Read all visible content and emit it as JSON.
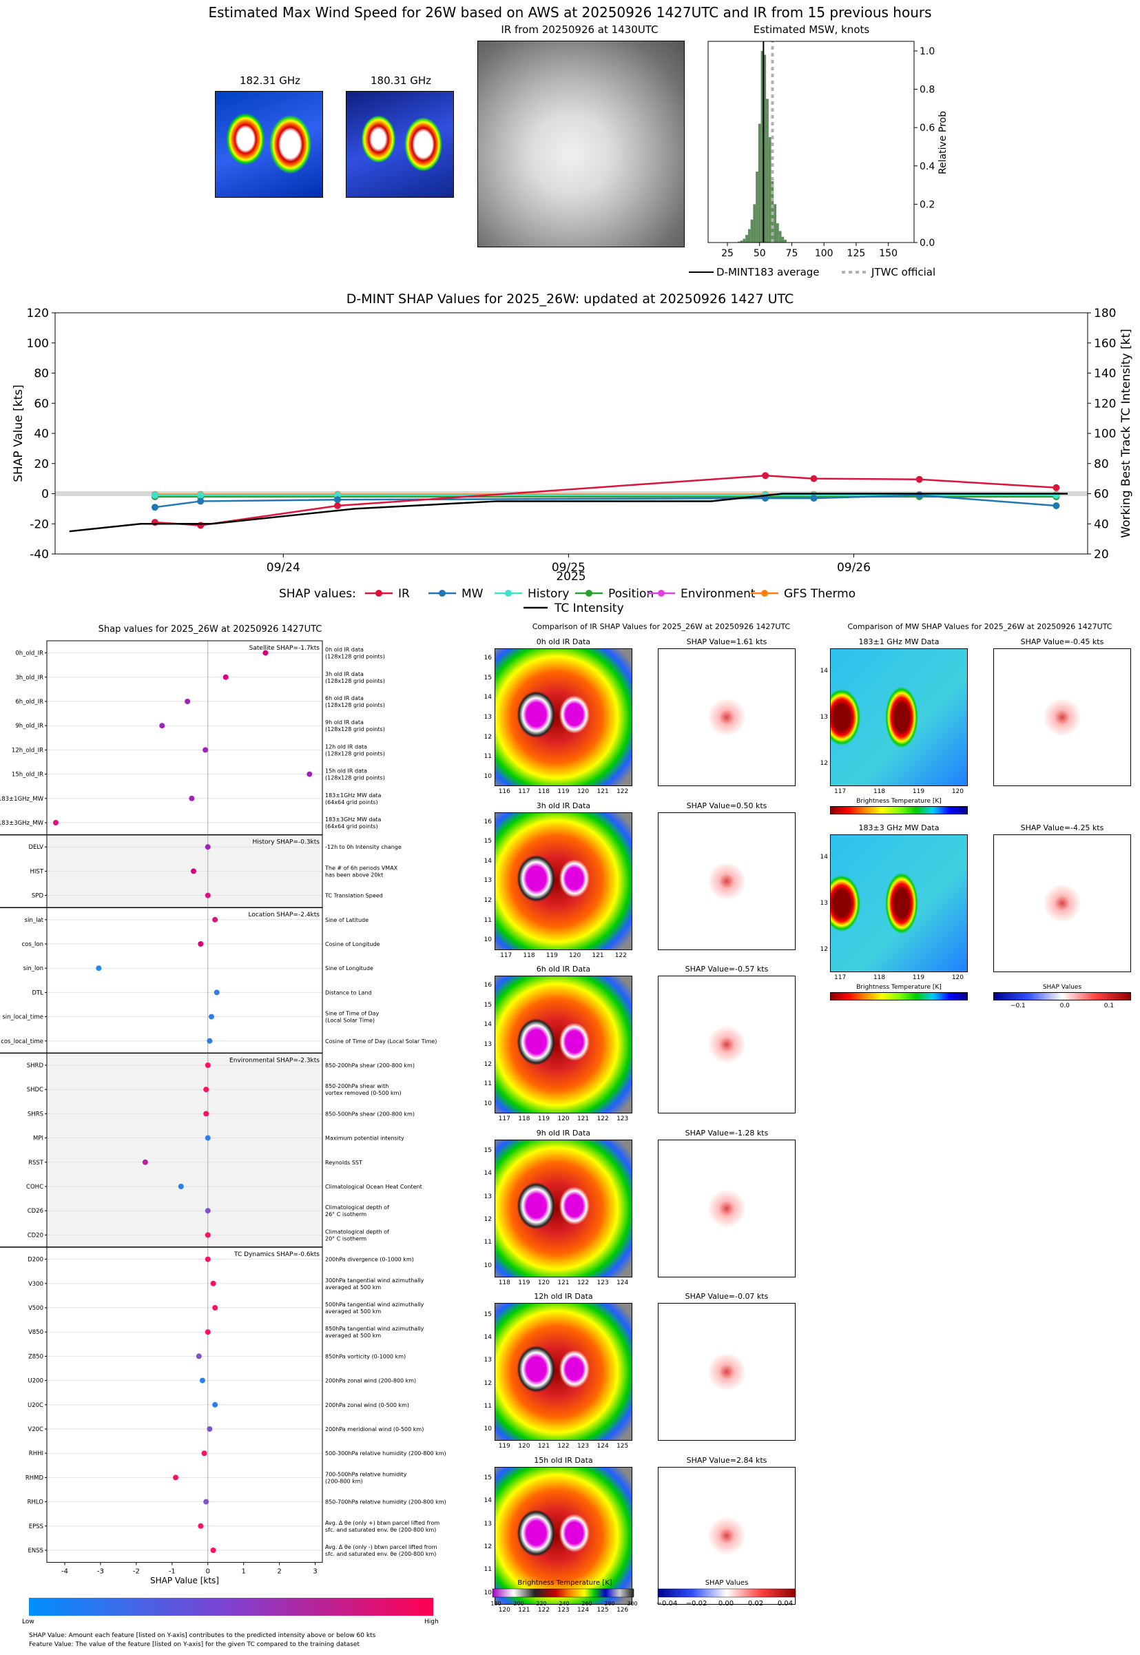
{
  "header": {
    "title": "Estimated Max Wind Speed for 26W based on AWS at 20250926 1427UTC and IR from 15 previous hours",
    "mw1_title": "182.31 GHz",
    "mw2_title": "180.31 GHz",
    "ir_title": "IR from 20250926 at 1430UTC",
    "hist_title": "Estimated MSW, knots",
    "hist_ylabel": "Relative Prob",
    "legend_avg": "D-MINT183 average",
    "legend_jtwc": "JTWC official"
  },
  "shap_ts": {
    "title": "D-MINT SHAP Values for 2025_26W: updated at 20250926 1427 UTC",
    "ylabel_left": "SHAP Value [kts]",
    "ylabel_right": "Working Best Track TC Intensity [kt]",
    "xlabel": "2025",
    "legend_prefix": "SHAP values:",
    "legend": [
      "IR",
      "MW",
      "History",
      "Position",
      "Environment",
      "GFS Thermo",
      "TC Intensity"
    ]
  },
  "beeswarm": {
    "title": "Shap values for 2025_26W at 20250926 1427UTC",
    "xlabel": "SHAP Value [kts]",
    "low": "Low",
    "high": "High",
    "foot1": "SHAP Value: Amount each feature [listed on Y-axis] contributes to the predicted intensity above or below 60 kts",
    "foot2": "Feature Value: The value of the feature [listed on Y-axis] for the given TC compared to the training dataset",
    "groups": [
      {
        "label": "Satellite SHAP=-1.7kts"
      },
      {
        "label": "History SHAP=-0.3kts"
      },
      {
        "label": "Location SHAP=-2.4kts"
      },
      {
        "label": "Environmental SHAP=-2.3kts"
      },
      {
        "label": "TC Dynamics SHAP=-0.6kts"
      }
    ]
  },
  "ir_compare": {
    "title": "Comparison of IR SHAP Values for 2025_26W at 20250926 1427UTC",
    "rows": [
      {
        "data": "0h old IR Data",
        "shap": "SHAP Value=1.61 kts"
      },
      {
        "data": "3h old IR Data",
        "shap": "SHAP Value=0.50 kts"
      },
      {
        "data": "6h old IR Data",
        "shap": "SHAP Value=-0.57 kts"
      },
      {
        "data": "9h old IR Data",
        "shap": "SHAP Value=-1.28 kts"
      },
      {
        "data": "12h old IR Data",
        "shap": "SHAP Value=-0.07 kts"
      },
      {
        "data": "15h old IR Data",
        "shap": "SHAP Value=2.84 kts"
      }
    ],
    "cbar_bt": "Brightness Temperature [K]",
    "cbar_shap": "SHAP Values"
  },
  "mw_compare": {
    "title": "Comparison of MW SHAP Values for 2025_26W at 20250926 1427UTC",
    "rows": [
      {
        "data": "183±1 GHz MW Data",
        "shap": "SHAP Value=-0.45 kts"
      },
      {
        "data": "183±3 GHz MW Data",
        "shap": "SHAP Value=-4.25 kts"
      }
    ],
    "cbar_bt": "Brightness Temperature [K]",
    "cbar_shap": "SHAP Values"
  },
  "colors": {
    "IR": "#dc143c",
    "MW": "#1f77b4",
    "History": "#40e0d0",
    "Position": "#2ca02c",
    "Environment": "#e040e0",
    "GFS Thermo": "#ff7f0e",
    "TC Intensity": "#000000",
    "hist_bar": "#5e8c5a"
  },
  "chart_data": [
    {
      "type": "bar",
      "title": "Estimated MSW, knots",
      "ylabel": "Relative Prob",
      "xticks": [
        25,
        50,
        75,
        100,
        125,
        150
      ],
      "yticks": [
        0.0,
        0.2,
        0.4,
        0.6,
        0.8,
        1.0
      ],
      "xlim": [
        10,
        170
      ],
      "ylim": [
        0,
        1.05
      ],
      "bins": [
        [
          34,
          0.005
        ],
        [
          36,
          0.01
        ],
        [
          38,
          0.02
        ],
        [
          40,
          0.04
        ],
        [
          42,
          0.07
        ],
        [
          44,
          0.12
        ],
        [
          46,
          0.2
        ],
        [
          48,
          0.37
        ],
        [
          50,
          0.62
        ],
        [
          52,
          1.0
        ],
        [
          54,
          0.98
        ],
        [
          56,
          0.75
        ],
        [
          58,
          0.55
        ],
        [
          60,
          0.32
        ],
        [
          62,
          0.2
        ],
        [
          64,
          0.1
        ],
        [
          66,
          0.06
        ],
        [
          68,
          0.03
        ],
        [
          70,
          0.015
        ]
      ],
      "avg_line": 53,
      "jtwc_line": 60
    },
    {
      "type": "line",
      "title": "D-MINT SHAP Values for 2025_26W: updated at 20250926 1427 UTC",
      "xlabel": "2025",
      "ylabel": "SHAP Value [kts]",
      "ylabel2": "Working Best Track TC Intensity [kt]",
      "ylim": [
        -40,
        120
      ],
      "ylim2": [
        20,
        180
      ],
      "xticks": [
        "09/24",
        "09/25",
        "09/26"
      ],
      "x": [
        -0.45,
        -0.29,
        0.19,
        1.69,
        1.86,
        2.23,
        2.71
      ],
      "series": [
        {
          "name": "IR",
          "values": [
            -19,
            -21,
            -8,
            12,
            10,
            9.5,
            4
          ]
        },
        {
          "name": "MW",
          "values": [
            -9,
            -5,
            -4,
            -3,
            -3,
            -1,
            -8
          ]
        },
        {
          "name": "History",
          "values": [
            -1,
            -1,
            -1,
            -1,
            -1,
            -1,
            -1
          ]
        },
        {
          "name": "Position",
          "values": [
            -2,
            -2,
            -2,
            -2,
            -2,
            -2,
            -2
          ]
        },
        {
          "name": "Environment",
          "values": [
            -2,
            -2,
            -2,
            -2,
            -2,
            -2,
            -2
          ]
        },
        {
          "name": "GFS Thermo",
          "values": [
            -0.5,
            -0.5,
            -0.5,
            -0.5,
            -0.5,
            -0.5,
            -0.5
          ]
        }
      ],
      "intensity": {
        "x": [
          -0.75,
          -0.5,
          -0.25,
          0,
          0.25,
          0.75,
          1,
          1.5,
          1.75,
          2,
          2.5,
          2.75
        ],
        "values": [
          35,
          40,
          40,
          45,
          50,
          55,
          55,
          55,
          60,
          60,
          60,
          60
        ]
      }
    },
    {
      "type": "scatter",
      "title": "Shap values for 2025_26W at 20250926 1427UTC",
      "xlabel": "SHAP Value [kts]",
      "xlim": [
        -4.5,
        3.2
      ],
      "xticks": [
        -4,
        -3,
        -2,
        -1,
        0,
        1,
        2,
        3
      ],
      "features": [
        {
          "name": "0h_old_IR",
          "desc": [
            "0h old IR data",
            "(128x128 grid points)"
          ],
          "shap": 1.61,
          "c": "#d9007f"
        },
        {
          "name": "3h_old_IR",
          "desc": [
            "3h old IR data",
            "(128x128 grid points)"
          ],
          "shap": 0.5,
          "c": "#d9007f"
        },
        {
          "name": "6h_old_IR",
          "desc": [
            "6h old IR data",
            "(128x128 grid points)"
          ],
          "shap": -0.57,
          "c": "#a020c0"
        },
        {
          "name": "9h_old_IR",
          "desc": [
            "9h old IR data",
            "(128x128 grid points)"
          ],
          "shap": -1.28,
          "c": "#a020c0"
        },
        {
          "name": "12h_old_IR",
          "desc": [
            "12h old IR data",
            "(128x128 grid points)"
          ],
          "shap": -0.07,
          "c": "#a020c0"
        },
        {
          "name": "15h_old_IR",
          "desc": [
            "15h old IR data",
            "(128x128 grid points)"
          ],
          "shap": 2.84,
          "c": "#a020c0"
        },
        {
          "name": "183±1GHz_MW",
          "desc": [
            "183±1GHz MW data",
            "(64x64 grid points)"
          ],
          "shap": -0.45,
          "c": "#a020c0"
        },
        {
          "name": "183±3GHz_MW",
          "desc": [
            "183±3GHz MW data",
            "(64x64 grid points)"
          ],
          "shap": -4.25,
          "c": "#e0107f"
        },
        {
          "name": "DELV",
          "desc": [
            "-12h to 0h Intensity change"
          ],
          "shap": 0.0,
          "c": "#a020c0"
        },
        {
          "name": "HIST",
          "desc": [
            "The # of 6h periods VMAX",
            "has been above 20kt"
          ],
          "shap": -0.4,
          "c": "#d9007f"
        },
        {
          "name": "SPD",
          "desc": [
            "TC Translation Speed"
          ],
          "shap": 0.0,
          "c": "#e0107f"
        },
        {
          "name": "sin_lat",
          "desc": [
            "Sine of Latitude"
          ],
          "shap": 0.2,
          "c": "#e0107f"
        },
        {
          "name": "cos_lon",
          "desc": [
            "Cosine of Longitude"
          ],
          "shap": -0.2,
          "c": "#d9007f"
        },
        {
          "name": "sin_lon",
          "desc": [
            "Sine of Longitude"
          ],
          "shap": -3.05,
          "c": "#1e8cf0"
        },
        {
          "name": "DTL",
          "desc": [
            "Distance to Land"
          ],
          "shap": 0.25,
          "c": "#2a7ef0"
        },
        {
          "name": "sin_local_time",
          "desc": [
            "Sine of Time of Day",
            "(Local Solar Time)"
          ],
          "shap": 0.1,
          "c": "#2a7ef0"
        },
        {
          "name": "cos_local_time",
          "desc": [
            "Cosine of Time of Day (Local Solar Time)"
          ],
          "shap": 0.05,
          "c": "#2a7ef0"
        },
        {
          "name": "SHRD",
          "desc": [
            "850-200hPa shear (200-800 km)"
          ],
          "shap": 0.0,
          "c": "#ff1060"
        },
        {
          "name": "SHDC",
          "desc": [
            "850-200hPa shear with",
            "vortex removed (0-500 km)"
          ],
          "shap": -0.05,
          "c": "#ff1060"
        },
        {
          "name": "SHRS",
          "desc": [
            "850-500hPa shear (200-800 km)"
          ],
          "shap": -0.05,
          "c": "#ff1060"
        },
        {
          "name": "MPI",
          "desc": [
            "Maximum potential intensity"
          ],
          "shap": 0.0,
          "c": "#2a7ef0"
        },
        {
          "name": "RSST",
          "desc": [
            "Reynolds SST"
          ],
          "shap": -1.75,
          "c": "#c020a0"
        },
        {
          "name": "COHC",
          "desc": [
            "Climatological Ocean Heat Content"
          ],
          "shap": -0.75,
          "c": "#2a7ef0"
        },
        {
          "name": "CD26",
          "desc": [
            "Climatological depth of",
            "26° C isotherm"
          ],
          "shap": 0.0,
          "c": "#8050d0"
        },
        {
          "name": "CD20",
          "desc": [
            "Climatological depth of",
            "20° C isotherm"
          ],
          "shap": 0.0,
          "c": "#ff1060"
        },
        {
          "name": "D200",
          "desc": [
            "200hPa divergence (0-1000 km)"
          ],
          "shap": 0.0,
          "c": "#ff1060"
        },
        {
          "name": "V300",
          "desc": [
            "300hPa tangential wind azimuthally",
            "averaged at 500 km"
          ],
          "shap": 0.15,
          "c": "#ff1060"
        },
        {
          "name": "V500",
          "desc": [
            "500hPa tangential wind azimuthally",
            "averaged at 500 km"
          ],
          "shap": 0.2,
          "c": "#ff1060"
        },
        {
          "name": "V850",
          "desc": [
            "850hPa tangential wind azimuthally",
            "averaged at 500 km"
          ],
          "shap": 0.0,
          "c": "#ff1060"
        },
        {
          "name": "Z850",
          "desc": [
            "850hPa vorticity (0-1000 km)"
          ],
          "shap": -0.25,
          "c": "#8050d0"
        },
        {
          "name": "U200",
          "desc": [
            "200hPa zonal wind (200-800 km)"
          ],
          "shap": -0.15,
          "c": "#2a7ef0"
        },
        {
          "name": "U20C",
          "desc": [
            "200hPa zonal wind (0-500 km)"
          ],
          "shap": 0.2,
          "c": "#2a7ef0"
        },
        {
          "name": "V20C",
          "desc": [
            "200hPa meridional wind (0-500 km)"
          ],
          "shap": 0.05,
          "c": "#8050d0"
        },
        {
          "name": "RHHI",
          "desc": [
            "500-300hPa relative humidity (200-800 km)"
          ],
          "shap": -0.1,
          "c": "#ff1060"
        },
        {
          "name": "RHMD",
          "desc": [
            "700-500hPa relative humidity",
            "(200-800 km)"
          ],
          "shap": -0.9,
          "c": "#ff1060"
        },
        {
          "name": "RHLO",
          "desc": [
            "850-700hPa relative humidity (200-800 km)"
          ],
          "shap": -0.05,
          "c": "#8050d0"
        },
        {
          "name": "EPSS",
          "desc": [
            "Avg. Δ θe (only +) btwn parcel lifted from",
            "sfc. and saturated env. θe (200-800 km)"
          ],
          "shap": -0.2,
          "c": "#ff1060"
        },
        {
          "name": "ENSS",
          "desc": [
            "Avg. Δ θe (only -) btwn parcel lifted from",
            "sfc. and saturated env. θe (200-800 km)"
          ],
          "shap": 0.15,
          "c": "#ff1060"
        }
      ]
    }
  ]
}
